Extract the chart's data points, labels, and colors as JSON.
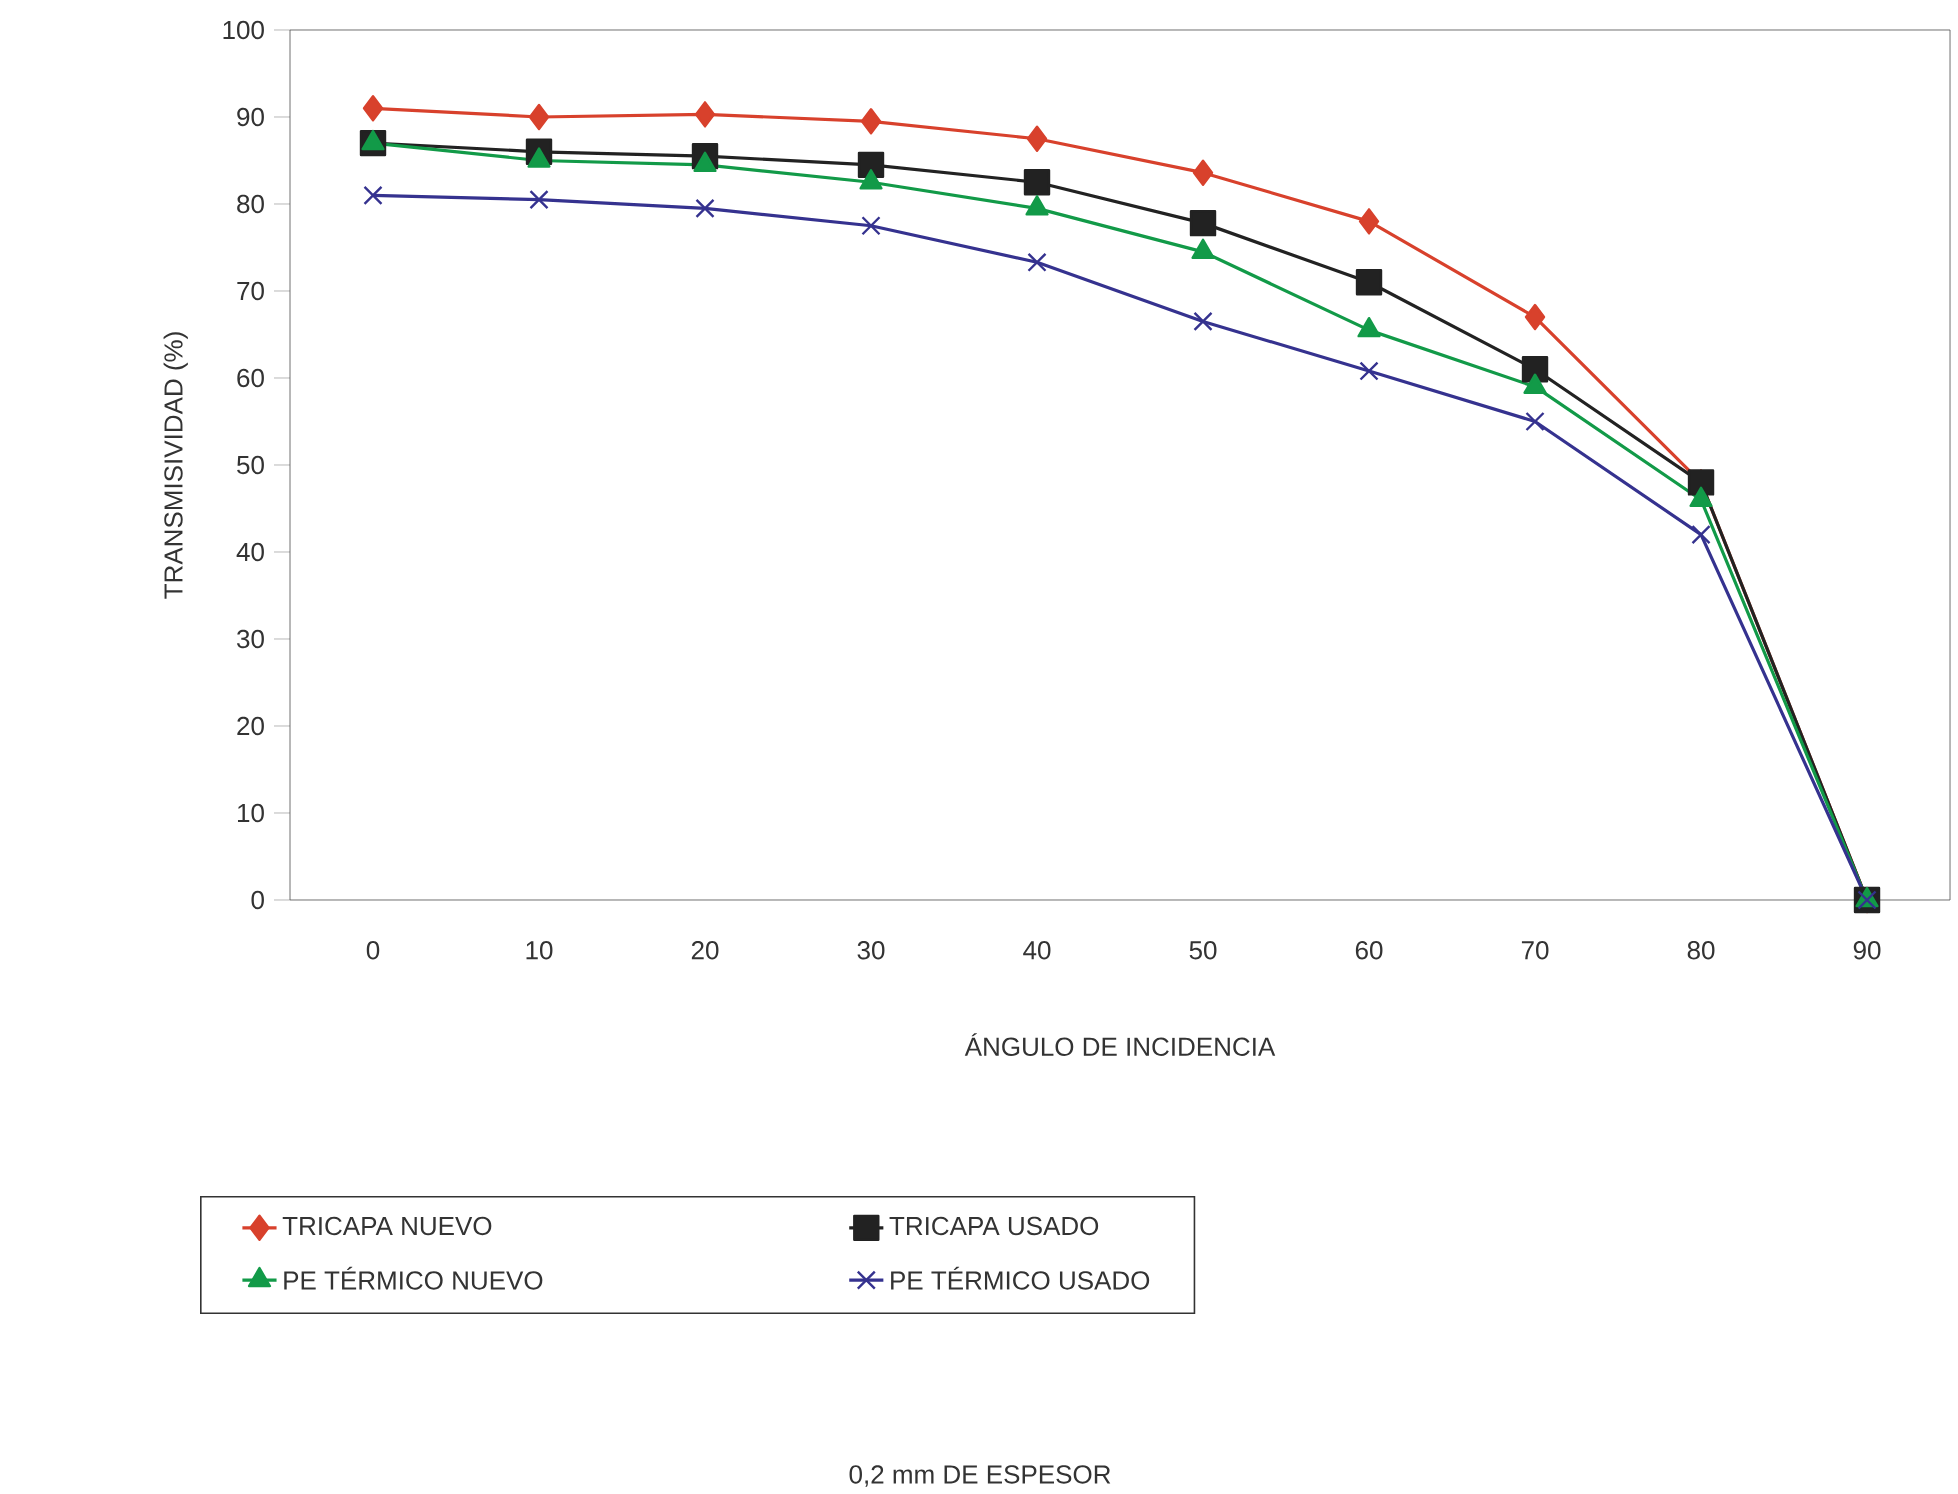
{
  "chart_data": {
    "type": "line",
    "xlabel": "ÁNGULO DE INCIDENCIA",
    "ylabel": "TRANSMISIVIDAD (%)",
    "categories": [
      "0",
      "10",
      "20",
      "30",
      "40",
      "50",
      "60",
      "70",
      "80",
      "90"
    ],
    "series": [
      {
        "name": "TRICAPA NUEVO",
        "color": "#d8412c",
        "marker": "diamond",
        "values": [
          91,
          90,
          90.3,
          89.5,
          87.5,
          83.6,
          78,
          67,
          48,
          0
        ]
      },
      {
        "name": "TRICAPA USADO",
        "color": "#222222",
        "marker": "square",
        "values": [
          87,
          86,
          85.5,
          84.5,
          82.5,
          77.8,
          71,
          61,
          48,
          0
        ]
      },
      {
        "name": "PE TÉRMICO NUEVO",
        "color": "#129a48",
        "marker": "triangle",
        "values": [
          87,
          85,
          84.5,
          82.5,
          79.5,
          74.5,
          65.5,
          59,
          46,
          0
        ]
      },
      {
        "name": "PE TÉRMICO USADO",
        "color": "#35328f",
        "marker": "cross",
        "values": [
          81,
          80.5,
          79.5,
          77.5,
          73.3,
          66.5,
          60.8,
          55,
          42,
          0
        ]
      }
    ],
    "ylim": [
      0,
      100
    ],
    "yticks": [
      0,
      10,
      20,
      30,
      40,
      50,
      60,
      70,
      80,
      90,
      100
    ],
    "legend": "bottom",
    "annotations": [
      "0,2 mm DE ESPESOR"
    ]
  }
}
